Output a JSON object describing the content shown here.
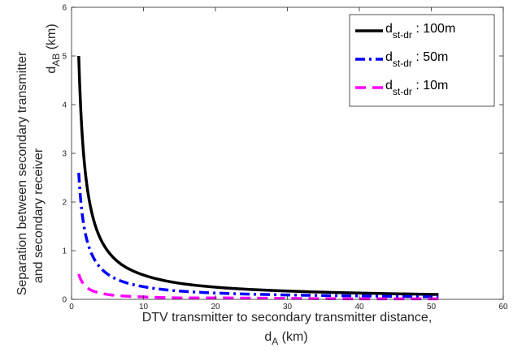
{
  "chart_data": {
    "type": "line",
    "xlabel_line1": "DTV transmitter to secondary transmitter distance,",
    "xlabel_line2_main": "d",
    "xlabel_line2_sub": "A",
    "xlabel_line2_unit": " (km)",
    "ylabel_line1": "Separation between secondary transmitter",
    "ylabel_line2": "and secondary receiver",
    "ylabel_line3_main": "d",
    "ylabel_line3_sub": "AB",
    "ylabel_line3_unit": " (km)",
    "xlim": [
      0,
      60
    ],
    "ylim": [
      0,
      6
    ],
    "xticks": [
      "0",
      "10",
      "20",
      "30",
      "40",
      "50",
      "60"
    ],
    "yticks": [
      "0",
      "1",
      "2",
      "3",
      "4",
      "5",
      "6"
    ],
    "grid": false,
    "legend_position": "top-right",
    "series": [
      {
        "name_main": "d",
        "name_sub": "st-dr",
        "name_suffix": " : 100m",
        "color": "#000000",
        "style": "solid",
        "x": [
          1,
          1.5,
          2,
          3,
          4,
          5,
          7,
          10,
          15,
          20,
          30,
          40,
          51
        ],
        "y": [
          5.0,
          3.33,
          2.5,
          1.67,
          1.25,
          1.0,
          0.71,
          0.5,
          0.33,
          0.25,
          0.17,
          0.13,
          0.1
        ]
      },
      {
        "name_main": "d",
        "name_sub": "st-dr",
        "name_suffix": " : 50m",
        "color": "#0000ff",
        "style": "dashdot",
        "x": [
          1,
          1.5,
          2,
          3,
          4,
          5,
          7,
          10,
          15,
          20,
          30,
          40,
          51
        ],
        "y": [
          2.6,
          1.73,
          1.3,
          0.87,
          0.65,
          0.52,
          0.37,
          0.26,
          0.17,
          0.13,
          0.09,
          0.07,
          0.05
        ]
      },
      {
        "name_main": "d",
        "name_sub": "st-dr",
        "name_suffix": " : 10m",
        "color": "#ff00ff",
        "style": "dashed",
        "x": [
          1,
          1.5,
          2,
          3,
          4,
          5,
          7,
          10,
          15,
          20,
          30,
          40,
          51
        ],
        "y": [
          0.52,
          0.35,
          0.26,
          0.17,
          0.13,
          0.1,
          0.07,
          0.05,
          0.03,
          0.03,
          0.02,
          0.01,
          0.01
        ]
      }
    ]
  }
}
